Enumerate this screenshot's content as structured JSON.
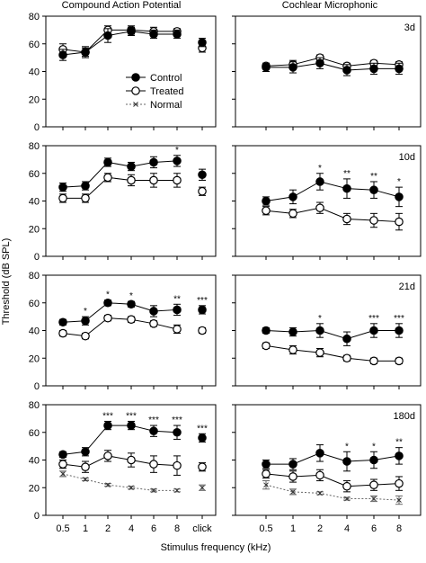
{
  "figure": {
    "col_titles": [
      "Compound Action Potential",
      "Cochlear Microphonic"
    ],
    "ylabel": "Threshold (dB SPL)",
    "xlabel": "Stimulus frequency  (kHz)",
    "x_tick_labels": [
      "0.5",
      "1",
      "2",
      "4",
      "6",
      "8",
      "click"
    ],
    "legend": {
      "control": "Control",
      "treated": "Treated",
      "normal": "Normal"
    }
  },
  "chart_data": [
    {
      "type": "line",
      "panel": "CAP",
      "row_label": "",
      "ylim": [
        0,
        80
      ],
      "yticks": [
        0,
        20,
        40,
        60,
        80
      ],
      "categories": [
        "0.5",
        "1",
        "2",
        "4",
        "6",
        "8",
        "click"
      ],
      "series": [
        {
          "name": "Control",
          "values": [
            52,
            54,
            66,
            69,
            67,
            67,
            61
          ],
          "err": [
            4,
            4,
            5,
            3,
            3,
            3,
            3
          ]
        },
        {
          "name": "Treated",
          "values": [
            56,
            54,
            70,
            70,
            69,
            69,
            57
          ],
          "err": [
            4,
            3,
            3,
            3,
            3,
            2,
            3
          ]
        }
      ],
      "sig": []
    },
    {
      "type": "line",
      "panel": "CM",
      "row_label": "3d",
      "ylim": [
        0,
        80
      ],
      "yticks": [],
      "categories": [
        "0.5",
        "1",
        "2",
        "4",
        "6",
        "8"
      ],
      "series": [
        {
          "name": "Control",
          "values": [
            43,
            43,
            46,
            41,
            42,
            42
          ],
          "err": [
            3,
            4,
            4,
            4,
            4,
            4
          ]
        },
        {
          "name": "Treated",
          "values": [
            44,
            45,
            50,
            44,
            46,
            45
          ],
          "err": [
            2,
            3,
            2,
            2,
            2,
            2
          ]
        }
      ],
      "sig": []
    },
    {
      "type": "line",
      "panel": "CAP",
      "row_label": "",
      "ylim": [
        0,
        80
      ],
      "yticks": [
        0,
        20,
        40,
        60,
        80
      ],
      "categories": [
        "0.5",
        "1",
        "2",
        "4",
        "6",
        "8",
        "click"
      ],
      "series": [
        {
          "name": "Control",
          "values": [
            50,
            51,
            68,
            65,
            68,
            69,
            59
          ],
          "err": [
            3,
            3,
            3,
            3,
            4,
            4,
            4
          ]
        },
        {
          "name": "Treated",
          "values": [
            42,
            42,
            57,
            55,
            55,
            55,
            47
          ],
          "err": [
            3,
            3,
            3,
            4,
            5,
            5,
            3
          ]
        }
      ],
      "sig": [
        "",
        "",
        "",
        "",
        "",
        "*",
        ""
      ]
    },
    {
      "type": "line",
      "panel": "CM",
      "row_label": "10d",
      "ylim": [
        0,
        80
      ],
      "yticks": [],
      "categories": [
        "0.5",
        "1",
        "2",
        "4",
        "6",
        "8"
      ],
      "series": [
        {
          "name": "Control",
          "values": [
            40,
            43,
            54,
            49,
            48,
            43
          ],
          "err": [
            3,
            5,
            6,
            7,
            6,
            7
          ]
        },
        {
          "name": "Treated",
          "values": [
            33,
            31,
            35,
            27,
            26,
            25
          ],
          "err": [
            3,
            3,
            4,
            4,
            5,
            6
          ]
        }
      ],
      "sig": [
        "",
        "",
        "*",
        "**",
        "**",
        "*"
      ]
    },
    {
      "type": "line",
      "panel": "CAP",
      "row_label": "",
      "ylim": [
        0,
        80
      ],
      "yticks": [
        0,
        20,
        40,
        60,
        80
      ],
      "categories": [
        "0.5",
        "1",
        "2",
        "4",
        "6",
        "8",
        "click"
      ],
      "series": [
        {
          "name": "Control",
          "values": [
            46,
            47,
            60,
            59,
            54,
            55,
            55
          ],
          "err": [
            2,
            3,
            2,
            2,
            4,
            4,
            3
          ]
        },
        {
          "name": "Treated",
          "values": [
            38,
            36,
            49,
            48,
            45,
            41,
            40
          ],
          "err": [
            2,
            2,
            2,
            2,
            2,
            3,
            2
          ]
        }
      ],
      "sig": [
        "",
        "*",
        "*",
        "*",
        "",
        "**",
        "***"
      ]
    },
    {
      "type": "line",
      "panel": "CM",
      "row_label": "21d",
      "ylim": [
        0,
        80
      ],
      "yticks": [],
      "categories": [
        "0.5",
        "1",
        "2",
        "4",
        "6",
        "8"
      ],
      "series": [
        {
          "name": "Control",
          "values": [
            40,
            39,
            40,
            34,
            40,
            40
          ],
          "err": [
            2,
            3,
            5,
            5,
            5,
            5
          ]
        },
        {
          "name": "Treated",
          "values": [
            29,
            26,
            24,
            20,
            18,
            18
          ],
          "err": [
            2,
            3,
            3,
            2,
            2,
            2
          ]
        }
      ],
      "sig": [
        "",
        "",
        "*",
        "",
        "***",
        "***"
      ]
    },
    {
      "type": "line",
      "panel": "CAP",
      "row_label": "",
      "ylim": [
        0,
        80
      ],
      "yticks": [
        0,
        20,
        40,
        60,
        80
      ],
      "categories": [
        "0.5",
        "1",
        "2",
        "4",
        "6",
        "8",
        "click"
      ],
      "series": [
        {
          "name": "Control",
          "values": [
            44,
            46,
            65,
            65,
            61,
            60,
            56
          ],
          "err": [
            2,
            3,
            3,
            3,
            4,
            5,
            3
          ]
        },
        {
          "name": "Treated",
          "values": [
            37,
            35,
            43,
            40,
            37,
            36,
            35
          ],
          "err": [
            3,
            4,
            4,
            5,
            6,
            7,
            3
          ]
        },
        {
          "name": "Normal",
          "values": [
            30,
            26,
            22,
            20,
            18,
            18,
            20
          ],
          "err": [
            2,
            1,
            1,
            1,
            1,
            1,
            2
          ]
        }
      ],
      "sig": [
        "",
        "",
        "***",
        "***",
        "***",
        "***",
        "***"
      ]
    },
    {
      "type": "line",
      "panel": "CM",
      "row_label": "180d",
      "ylim": [
        0,
        80
      ],
      "yticks": [],
      "categories": [
        "0.5",
        "1",
        "2",
        "4",
        "6",
        "8"
      ],
      "series": [
        {
          "name": "Control",
          "values": [
            37,
            37,
            45,
            39,
            40,
            43
          ],
          "err": [
            3,
            4,
            6,
            7,
            6,
            6
          ]
        },
        {
          "name": "Treated",
          "values": [
            30,
            28,
            29,
            21,
            22,
            23
          ],
          "err": [
            3,
            4,
            4,
            4,
            4,
            5
          ]
        },
        {
          "name": "Normal",
          "values": [
            22,
            17,
            16,
            12,
            12,
            11
          ],
          "err": [
            3,
            2,
            1,
            1,
            2,
            3
          ]
        }
      ],
      "sig": [
        "",
        "",
        "",
        "*",
        "*",
        "**"
      ]
    }
  ]
}
